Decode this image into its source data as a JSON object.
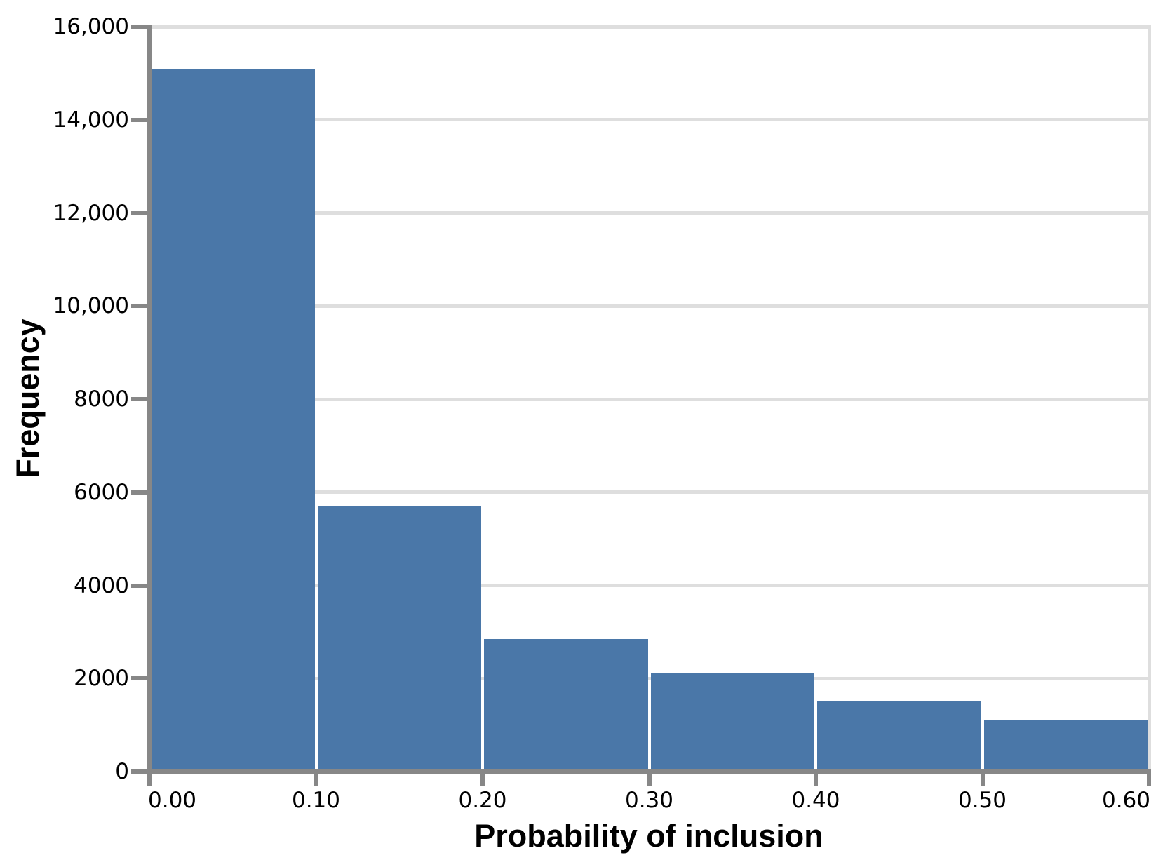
{
  "chart_data": {
    "type": "bar",
    "subtype": "histogram",
    "title": "",
    "xlabel": "Probability of inclusion",
    "ylabel": "Frequency",
    "bin_edges": [
      0.0,
      0.1,
      0.2,
      0.3,
      0.4,
      0.5,
      0.6
    ],
    "values": [
      15100,
      5700,
      2840,
      2120,
      1520,
      1110
    ],
    "xlim": [
      0.0,
      0.6
    ],
    "ylim": [
      0,
      16000
    ],
    "x_ticks": [
      {
        "value": 0.0,
        "label": "0.00"
      },
      {
        "value": 0.1,
        "label": "0.10"
      },
      {
        "value": 0.2,
        "label": "0.20"
      },
      {
        "value": 0.3,
        "label": "0.30"
      },
      {
        "value": 0.4,
        "label": "0.40"
      },
      {
        "value": 0.5,
        "label": "0.50"
      },
      {
        "value": 0.6,
        "label": "0.60"
      }
    ],
    "y_ticks": [
      {
        "value": 0,
        "label": "0"
      },
      {
        "value": 2000,
        "label": "2000"
      },
      {
        "value": 4000,
        "label": "4000"
      },
      {
        "value": 6000,
        "label": "6000"
      },
      {
        "value": 8000,
        "label": "8000"
      },
      {
        "value": 10000,
        "label": "10,000"
      },
      {
        "value": 12000,
        "label": "12,000"
      },
      {
        "value": 14000,
        "label": "14,000"
      },
      {
        "value": 16000,
        "label": "16,000"
      }
    ],
    "grid": "horizontal",
    "legend": "none",
    "colors": {
      "bar": "#4a77a8",
      "axis": "#878787",
      "grid": "#dedede",
      "text": "#000000",
      "background": "#ffffff"
    }
  }
}
